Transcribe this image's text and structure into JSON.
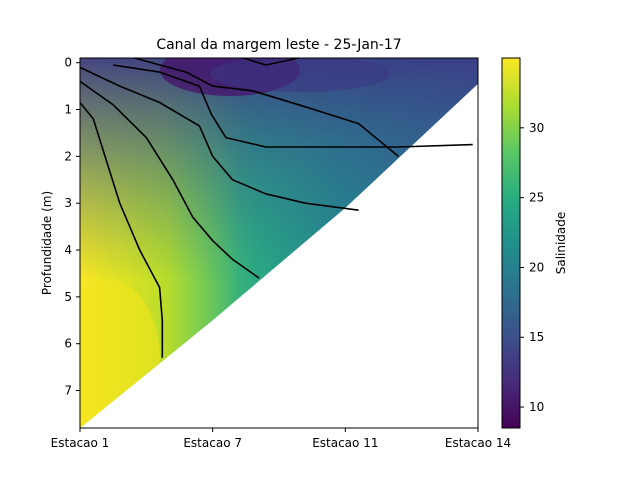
{
  "chart_data": {
    "type": "heatmap",
    "title": "Canal da margem leste - 25-Jan-17",
    "ylabel": "Profundidade (m)",
    "x_categories": [
      "Estacao 1",
      "Estacao 7",
      "Estacao 11",
      "Estacao 14"
    ],
    "y_ticks": [
      "0",
      "1",
      "2",
      "3",
      "4",
      "5",
      "6",
      "7"
    ],
    "ylim": [
      7.8,
      -0.1
    ],
    "y_inverted": true,
    "colorbar": {
      "label": "Salinidade",
      "range": [
        8.5,
        35
      ],
      "ticks": [
        "10",
        "15",
        "20",
        "25",
        "30"
      ],
      "colormap": "viridis"
    },
    "bottom_depth_profile": [
      {
        "station": "Estacao 1",
        "depth": 7.8
      },
      {
        "station": "Estacao 7",
        "depth": 5.5
      },
      {
        "station": "Estacao 11",
        "depth": 3.1
      },
      {
        "station": "Estacao 14",
        "depth": 0.45
      }
    ],
    "contour_levels": [
      10,
      15,
      20,
      25,
      30
    ],
    "colors": {
      "contour": "#000000",
      "background": "#ffffff"
    }
  }
}
